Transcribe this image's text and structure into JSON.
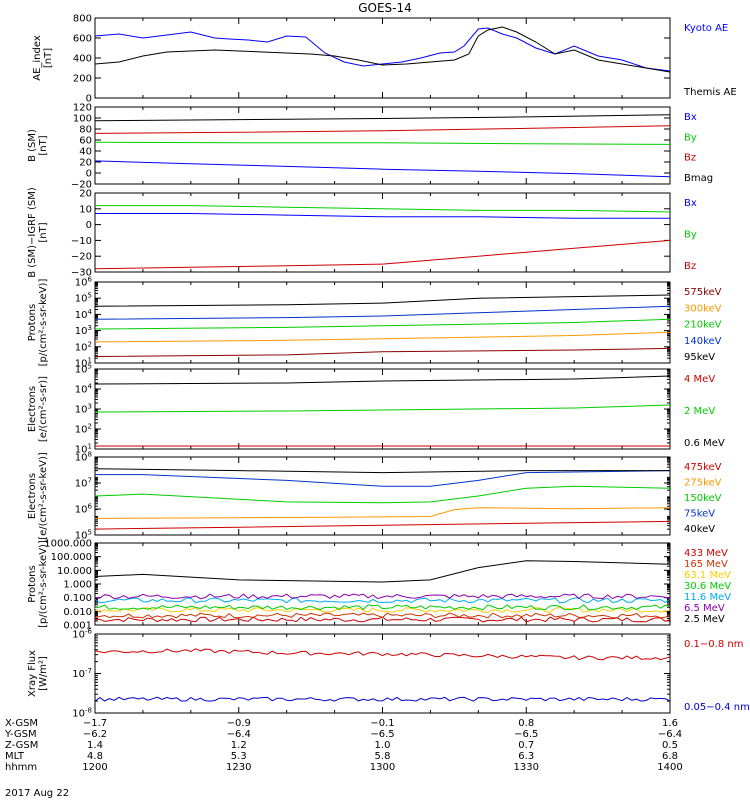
{
  "title": "GOES-14",
  "chart_data": [
    {
      "type": "line",
      "ylabel": "AE_index\n[nT]",
      "ylim": [
        0,
        800
      ],
      "log": false,
      "yticks": [
        "800",
        "600",
        "400",
        "200",
        "0"
      ],
      "series": [
        {
          "name": "Kyoto AE",
          "color": "#0000ff",
          "x": [
            1200,
            1205,
            1210,
            1215,
            1220,
            1225,
            1228,
            1232,
            1236,
            1240,
            1244,
            1248,
            1252,
            1256,
            1300,
            1304,
            1308,
            1312,
            1315,
            1317,
            1320,
            1322,
            1325,
            1328,
            1332,
            1336,
            1340,
            1345,
            1350,
            1355,
            1400
          ],
          "y": [
            620,
            640,
            600,
            630,
            660,
            600,
            590,
            580,
            560,
            620,
            610,
            450,
            360,
            320,
            340,
            360,
            400,
            450,
            460,
            520,
            690,
            700,
            640,
            600,
            500,
            440,
            520,
            420,
            380,
            300,
            270
          ]
        },
        {
          "name": "Themis AE",
          "color": "#000000",
          "x": [
            1200,
            1205,
            1210,
            1215,
            1220,
            1225,
            1230,
            1235,
            1240,
            1245,
            1250,
            1255,
            1300,
            1305,
            1310,
            1315,
            1318,
            1320,
            1322,
            1325,
            1328,
            1332,
            1336,
            1340,
            1345,
            1350,
            1355,
            1400
          ],
          "y": [
            340,
            360,
            420,
            460,
            470,
            480,
            470,
            460,
            450,
            440,
            420,
            380,
            330,
            340,
            360,
            380,
            440,
            620,
            680,
            710,
            660,
            560,
            440,
            480,
            380,
            340,
            300,
            260
          ]
        }
      ]
    },
    {
      "type": "line",
      "ylabel": "B (SM)\n[nT]",
      "ylim": [
        -20,
        120
      ],
      "log": false,
      "yticks": [
        "120",
        "100",
        "80",
        "60",
        "40",
        "20",
        "0",
        "−20"
      ],
      "series": [
        {
          "name": "Bx",
          "color": "#0000ff",
          "x": [
            1200,
            1220,
            1240,
            1300,
            1320,
            1340,
            1400
          ],
          "y": [
            22,
            17,
            12,
            7,
            3,
            -1,
            -7
          ]
        },
        {
          "name": "By",
          "color": "#00cc00",
          "x": [
            1200,
            1230,
            1300,
            1330,
            1400
          ],
          "y": [
            56,
            55,
            55,
            53,
            52
          ]
        },
        {
          "name": "Bz",
          "color": "#cc0000",
          "x": [
            1200,
            1230,
            1300,
            1330,
            1400
          ],
          "y": [
            72,
            74,
            77,
            81,
            86
          ]
        },
        {
          "name": "Bmag",
          "color": "#000000",
          "x": [
            1200,
            1230,
            1300,
            1330,
            1400
          ],
          "y": [
            95,
            97,
            99,
            102,
            106
          ]
        }
      ]
    },
    {
      "type": "line",
      "ylabel": "B (SM)−IGRF (SM)\n[nT]",
      "ylim": [
        -30,
        20
      ],
      "log": false,
      "yticks": [
        "20",
        "10",
        "0",
        "−10",
        "−20",
        "−30"
      ],
      "series": [
        {
          "name": "Bx",
          "color": "#0000ff",
          "x": [
            1200,
            1220,
            1240,
            1300,
            1320,
            1340,
            1400
          ],
          "y": [
            7,
            7,
            6,
            5,
            5,
            4,
            4
          ]
        },
        {
          "name": "By",
          "color": "#00cc00",
          "x": [
            1200,
            1220,
            1240,
            1300,
            1320,
            1340,
            1400
          ],
          "y": [
            12,
            12,
            11,
            10,
            9,
            9,
            8
          ]
        },
        {
          "name": "Bz",
          "color": "#cc0000",
          "x": [
            1200,
            1220,
            1240,
            1300,
            1320,
            1340,
            1400
          ],
          "y": [
            -28,
            -27,
            -26,
            -25,
            -20,
            -15,
            -10
          ]
        }
      ]
    },
    {
      "type": "line",
      "ylabel": "Protons\n[p/(cm²-s-sr-keV)]",
      "ylim": [
        1,
        6
      ],
      "log": true,
      "yticks": [
        "10^6",
        "10^5",
        "10^4",
        "10^3",
        "10^2",
        "10^1"
      ],
      "series": [
        {
          "name": "575keV",
          "color": "#8b0000",
          "x": [
            1200,
            1240,
            1300,
            1340,
            1400
          ],
          "y": [
            1.4,
            1.5,
            1.7,
            1.8,
            1.9
          ]
        },
        {
          "name": "300keV",
          "color": "#ff9900",
          "x": [
            1200,
            1240,
            1300,
            1340,
            1400
          ],
          "y": [
            2.3,
            2.4,
            2.5,
            2.7,
            2.9
          ]
        },
        {
          "name": "210keV",
          "color": "#00cc00",
          "x": [
            1200,
            1240,
            1300,
            1340,
            1400
          ],
          "y": [
            3.1,
            3.2,
            3.3,
            3.5,
            3.7
          ]
        },
        {
          "name": "140keV",
          "color": "#0033cc",
          "x": [
            1200,
            1240,
            1300,
            1320,
            1340,
            1400
          ],
          "y": [
            3.7,
            3.8,
            3.9,
            4.1,
            4.3,
            4.5
          ]
        },
        {
          "name": "95keV",
          "color": "#000000",
          "x": [
            1200,
            1240,
            1300,
            1320,
            1340,
            1400
          ],
          "y": [
            4.5,
            4.6,
            4.7,
            5.0,
            5.1,
            5.2
          ]
        }
      ]
    },
    {
      "type": "line",
      "ylabel": "Electrons\n[e/(cm²-s-sr)]",
      "ylim": [
        1,
        5
      ],
      "log": true,
      "yticks": [
        "10^5",
        "10^4",
        "10^3",
        "10^2",
        "10^1"
      ],
      "series": [
        {
          "name": "4 MeV",
          "color": "#cc0000",
          "x": [
            1200,
            1240,
            1300,
            1340,
            1400
          ],
          "y": [
            1.15,
            1.15,
            1.15,
            1.15,
            1.15
          ]
        },
        {
          "name": "2 MeV",
          "color": "#00cc00",
          "x": [
            1200,
            1240,
            1300,
            1340,
            1400
          ],
          "y": [
            2.85,
            2.9,
            2.95,
            3.05,
            3.2
          ]
        },
        {
          "name": "0.6 MeV",
          "color": "#000000",
          "x": [
            1200,
            1240,
            1300,
            1340,
            1400
          ],
          "y": [
            4.25,
            4.3,
            4.4,
            4.5,
            4.65
          ]
        }
      ]
    },
    {
      "type": "line",
      "ylabel": "Electrons\n[e/(cm²-s-sr-keV)]",
      "ylim": [
        4,
        8
      ],
      "log": true,
      "yticks": [
        "10^8",
        "10^7",
        "10^6",
        "10^5"
      ],
      "series": [
        {
          "name": "475keV",
          "color": "#cc0000",
          "x": [
            1200,
            1230,
            1300,
            1330,
            1400
          ],
          "y": [
            4.3,
            4.4,
            4.5,
            4.6,
            4.7
          ]
        },
        {
          "name": "275keV",
          "color": "#ff9900",
          "x": [
            1200,
            1240,
            1310,
            1315,
            1320,
            1340,
            1400
          ],
          "y": [
            4.85,
            4.9,
            4.95,
            5.3,
            5.4,
            5.35,
            5.4
          ]
        },
        {
          "name": "150keV",
          "color": "#00cc00",
          "x": [
            1200,
            1210,
            1240,
            1300,
            1310,
            1320,
            1330,
            1340,
            1400
          ],
          "y": [
            6.0,
            6.1,
            5.7,
            5.65,
            5.7,
            6.0,
            6.4,
            6.5,
            6.4
          ]
        },
        {
          "name": "75keV",
          "color": "#0033cc",
          "x": [
            1200,
            1210,
            1240,
            1300,
            1310,
            1320,
            1330,
            1400
          ],
          "y": [
            7.1,
            7.1,
            6.8,
            6.5,
            6.5,
            6.8,
            7.2,
            7.3
          ]
        },
        {
          "name": "40keV",
          "color": "#000000",
          "x": [
            1200,
            1230,
            1300,
            1330,
            1400
          ],
          "y": [
            7.4,
            7.3,
            7.2,
            7.3,
            7.3
          ]
        }
      ]
    },
    {
      "type": "line",
      "ylabel": "Protons\n[p/(cm²-s-sr-keV)]",
      "ylim": [
        -3,
        3
      ],
      "log": true,
      "yticks": [
        "1000.000",
        "100.000",
        "10.000",
        "1.000",
        "0.100",
        "0.010",
        "0.001"
      ],
      "series": [
        {
          "name": "433 MeV",
          "color": "#cc0000",
          "x": [
            1200,
            1300,
            1400
          ],
          "y": [
            -2.6,
            -2.6,
            -2.6
          ]
        },
        {
          "name": "165 MeV",
          "color": "#cc3300",
          "x": [
            1200,
            1300,
            1400
          ],
          "y": [
            -2.3,
            -2.3,
            -2.3
          ]
        },
        {
          "name": "63.1 MeV",
          "color": "#ffcc00",
          "x": [
            1200,
            1300,
            1400
          ],
          "y": [
            -1.9,
            -1.9,
            -1.9
          ]
        },
        {
          "name": "30.6 MeV",
          "color": "#00cc00",
          "x": [
            1200,
            1300,
            1400
          ],
          "y": [
            -1.7,
            -1.7,
            -1.7
          ]
        },
        {
          "name": "11.6 MeV",
          "color": "#00aaee",
          "x": [
            1200,
            1300,
            1400
          ],
          "y": [
            -1.2,
            -1.2,
            -1.2
          ]
        },
        {
          "name": "6.5 MeV",
          "color": "#8800aa",
          "x": [
            1200,
            1300,
            1400
          ],
          "y": [
            -0.9,
            -0.9,
            -0.9
          ]
        },
        {
          "name": "2.5 MeV",
          "color": "#000000",
          "x": [
            1200,
            1210,
            1230,
            1300,
            1310,
            1320,
            1330,
            1340,
            1400
          ],
          "y": [
            0.55,
            0.7,
            0.3,
            0.15,
            0.3,
            1.2,
            1.7,
            1.65,
            1.45
          ]
        }
      ]
    },
    {
      "type": "line",
      "ylabel": "Xray Flux\n[W/m²]",
      "ylim": [
        -8,
        -6
      ],
      "log": true,
      "yticks": [
        "10^-6",
        "10^-7",
        "10^-8"
      ],
      "series": [
        {
          "name": "0.1−0.8 nm",
          "color": "#cc0000",
          "x": [
            1200,
            1220,
            1240,
            1300,
            1320,
            1340,
            1400
          ],
          "y": [
            -6.45,
            -6.42,
            -6.48,
            -6.5,
            -6.55,
            -6.6,
            -6.6
          ]
        },
        {
          "name": "0.05−0.4 nm",
          "color": "#0000cc",
          "x": [
            1200,
            1240,
            1300,
            1340,
            1400
          ],
          "y": [
            -7.65,
            -7.65,
            -7.65,
            -7.65,
            -7.65
          ]
        }
      ]
    }
  ],
  "xaxis": {
    "rows": [
      {
        "label": "X-GSM",
        "values": [
          "−1.7",
          "−0.9",
          "−0.1",
          "0.8",
          "1.6"
        ]
      },
      {
        "label": "Y-GSM",
        "values": [
          "−6.2",
          "−6.4",
          "−6.5",
          "−6.5",
          "−6.4"
        ]
      },
      {
        "label": "Z-GSM",
        "values": [
          "1.4",
          "1.2",
          "1.0",
          "0.7",
          "0.5"
        ]
      },
      {
        "label": "MLT",
        "values": [
          "4.8",
          "5.3",
          "5.8",
          "6.3",
          "6.8"
        ]
      },
      {
        "label": "hhmm",
        "values": [
          "1200",
          "1230",
          "1300",
          "1330",
          "1400"
        ]
      }
    ],
    "date": "2017 Aug 22"
  }
}
